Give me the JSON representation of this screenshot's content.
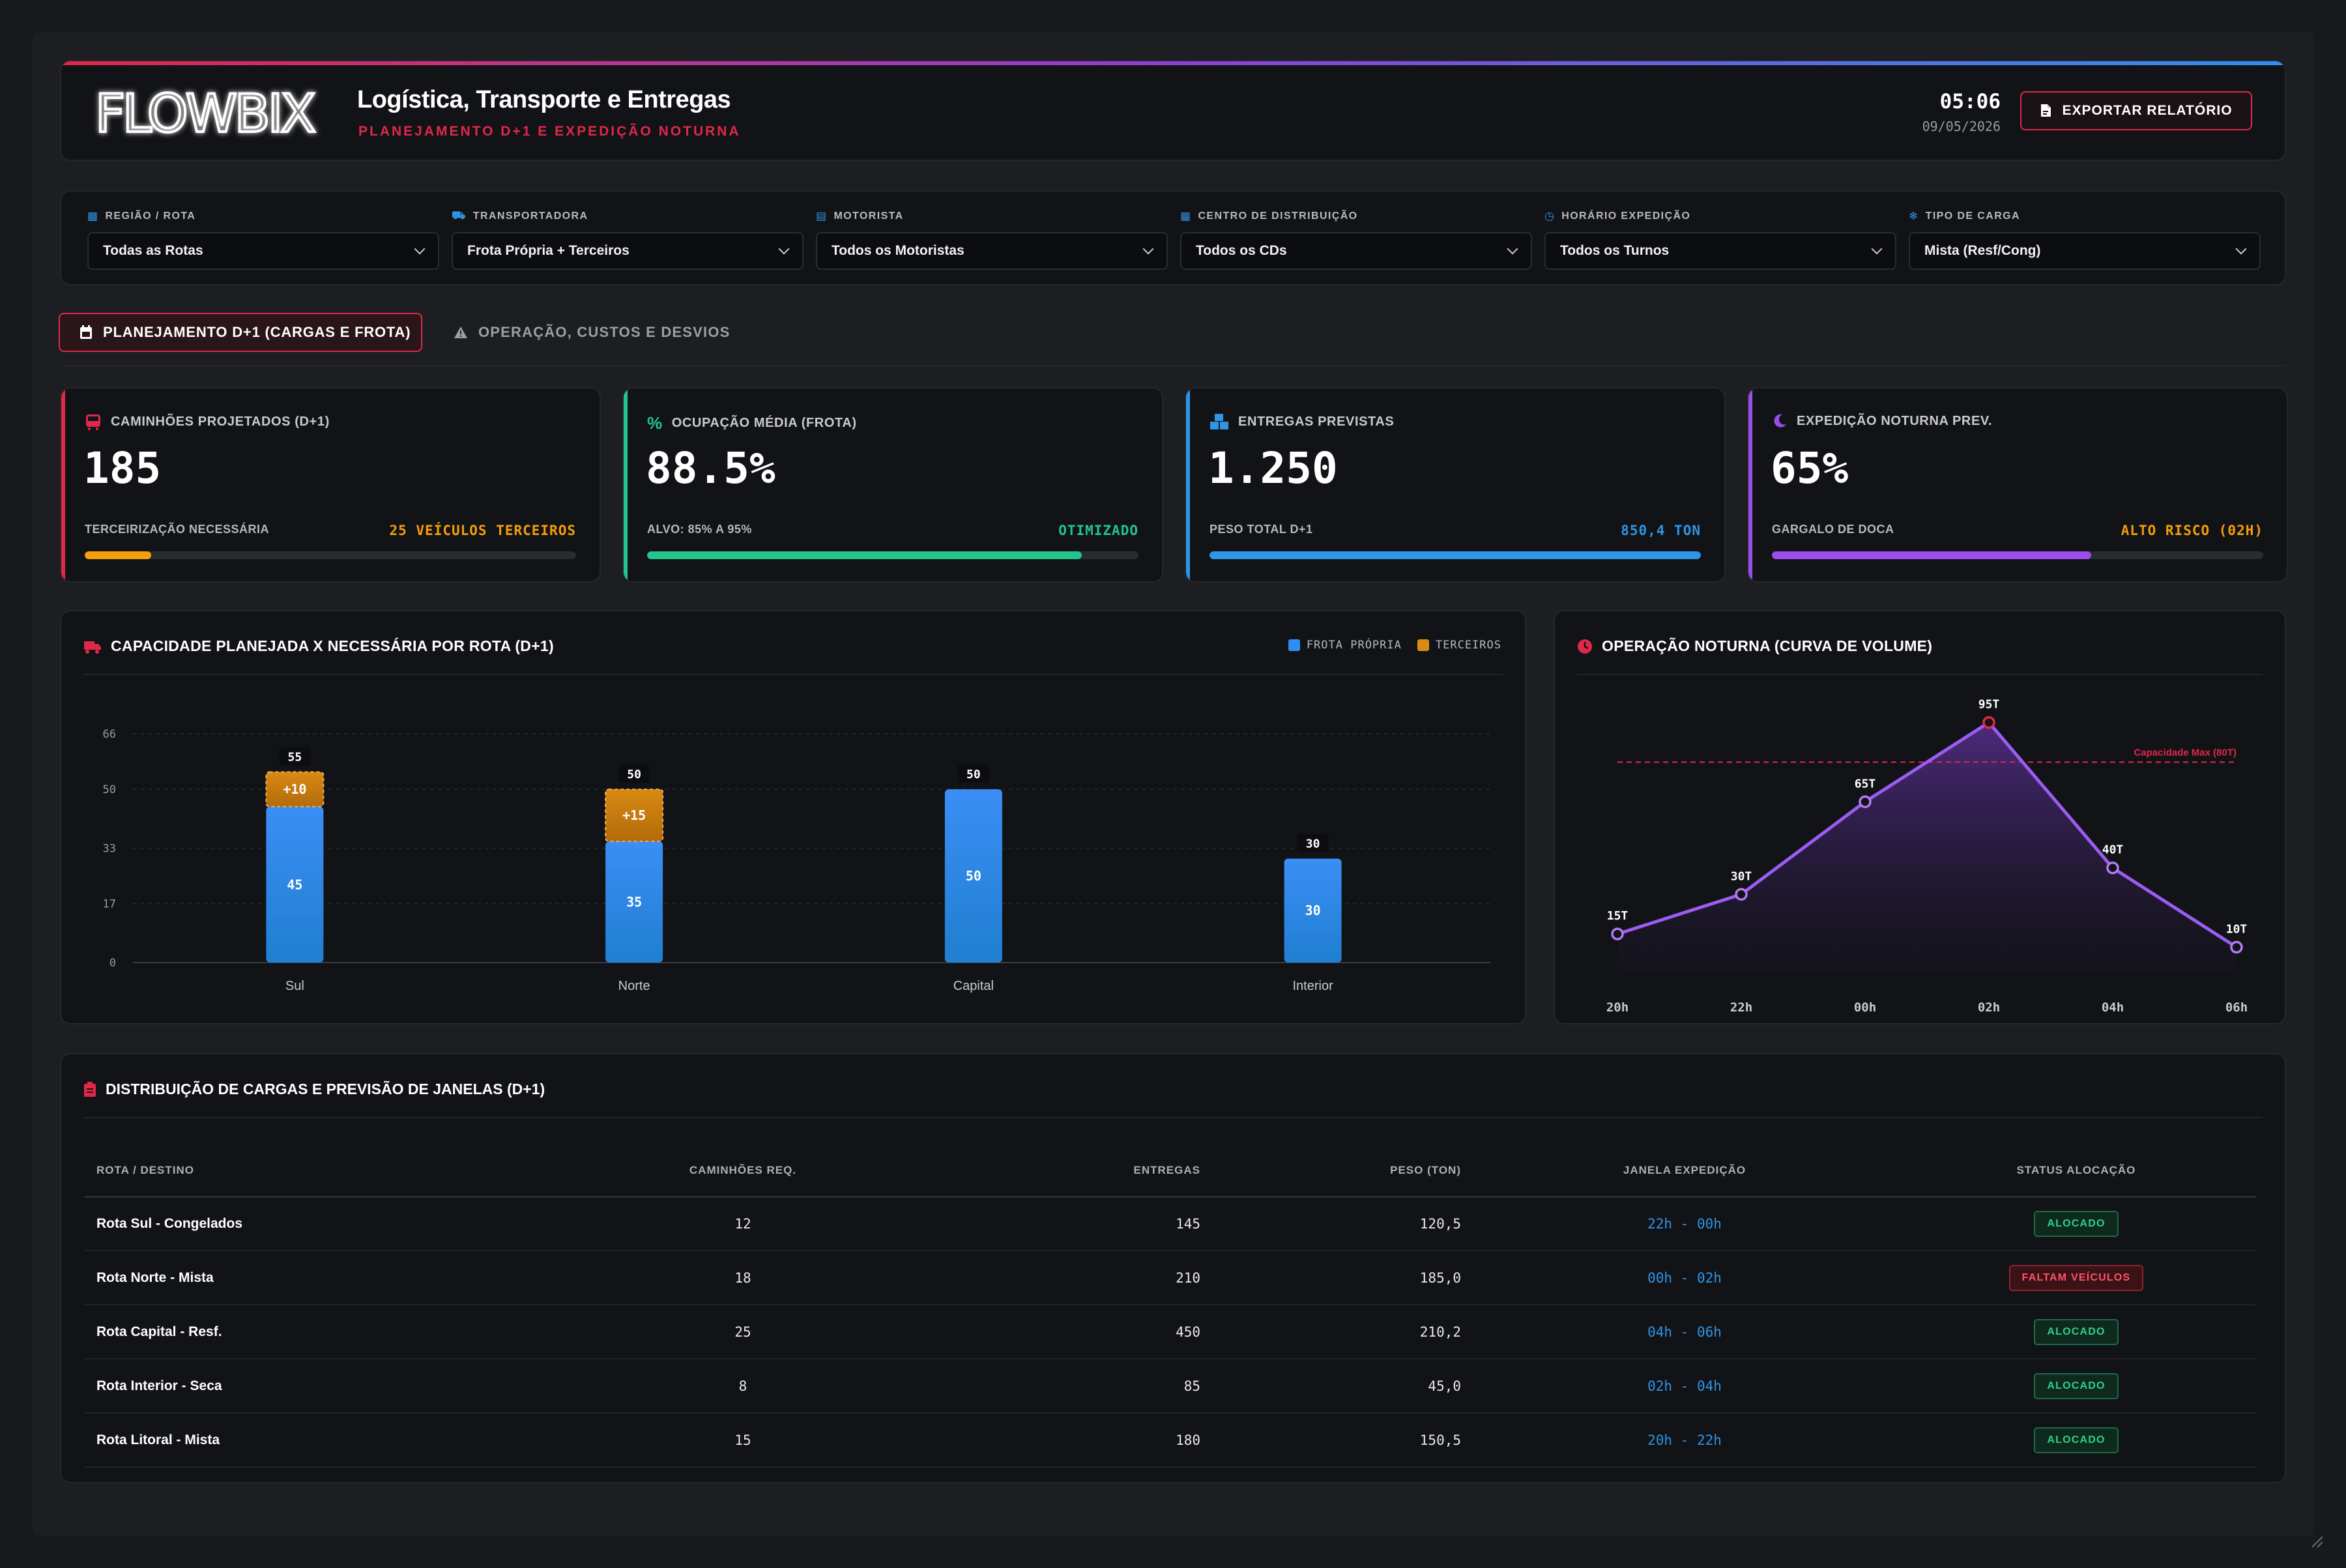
{
  "header": {
    "logo_text": "FLOWBIX",
    "title": "Logística, Transporte e Entregas",
    "subtitle": "PLANEJAMENTO D+1 E EXPEDIÇÃO NOTURNA",
    "time": "05:06",
    "date": "09/05/2026",
    "export_label": "EXPORTAR RELATÓRIO"
  },
  "filters": [
    {
      "label": "REGIÃO / ROTA",
      "value": "Todas as Rotas",
      "icon": "region-icon"
    },
    {
      "label": "TRANSPORTADORA",
      "value": "Frota Própria + Terceiros",
      "icon": "truck-icon"
    },
    {
      "label": "MOTORISTA",
      "value": "Todos os Motoristas",
      "icon": "id-card-icon"
    },
    {
      "label": "CENTRO DE DISTRIBUIÇÃO",
      "value": "Todos os CDs",
      "icon": "warehouse-icon"
    },
    {
      "label": "HORÁRIO EXPEDIÇÃO",
      "value": "Todos os Turnos",
      "icon": "clock-icon"
    },
    {
      "label": "TIPO DE CARGA",
      "value": "Mista (Resf/Cong)",
      "icon": "snowflake-icon"
    }
  ],
  "tabs": {
    "active": "PLANEJAMENTO D+1 (CARGAS E FROTA)",
    "inactive": "OPERAÇÃO, CUSTOS E DESVIOS"
  },
  "kpis": [
    {
      "title": "CAMINHÕES PROJETADOS (D+1)",
      "value": "185",
      "sub": "TERCEIRIZAÇÃO NECESSÁRIA",
      "badge": "25 VEÍCULOS TERCEIROS",
      "color": "#e0284a",
      "badge_color": "#f59e0b",
      "bar_color": "#f59e0b",
      "progress": 0.135
    },
    {
      "title": "OCUPAÇÃO MÉDIA (FROTA)",
      "value": "88.5%",
      "sub": "ALVO: 85% A 95%",
      "badge": "OTIMIZADO",
      "color": "#22c58b",
      "badge_color": "#22c58b",
      "bar_color": "#22c58b",
      "progress": 0.885
    },
    {
      "title": "ENTREGAS PREVISTAS",
      "value": "1.250",
      "sub": "PESO TOTAL D+1",
      "badge": "850,4 TON",
      "color": "#2f95e6",
      "badge_color": "#2f95e6",
      "bar_color": "#2f95e6",
      "progress": 1.0
    },
    {
      "title": "EXPEDIÇÃO NOTURNA PREV.",
      "value": "65%",
      "sub": "GARGALO DE DOCA",
      "badge": "ALTO RISCO (02H)",
      "color": "#9b4dea",
      "badge_color": "#f59e0b",
      "bar_color": "#9b4dea",
      "progress": 0.65
    }
  ],
  "capacity_chart": {
    "title": "CAPACIDADE PLANEJADA X NECESSÁRIA POR ROTA (D+1)",
    "legend": [
      "FROTA PRÓPRIA",
      "TERCEIROS"
    ]
  },
  "night_chart": {
    "title": "OPERAÇÃO NOTURNA (CURVA DE VOLUME)",
    "capacity_label": "Capacidade Max (80T)"
  },
  "chart_data": [
    {
      "type": "bar",
      "title": "CAPACIDADE PLANEJADA X NECESSÁRIA POR ROTA (D+1)",
      "categories": [
        "Sul",
        "Norte",
        "Capital",
        "Interior"
      ],
      "series": [
        {
          "name": "FROTA PRÓPRIA",
          "values": [
            45,
            35,
            50,
            30
          ],
          "labels": [
            "45",
            "35",
            "50",
            "30"
          ],
          "color": "#2f8ff0"
        },
        {
          "name": "TERCEIROS",
          "values": [
            10,
            15,
            0,
            0
          ],
          "labels": [
            "+10",
            "+15",
            "",
            ""
          ],
          "color": "#d98a14"
        }
      ],
      "totals": [
        "55",
        "50",
        "50",
        "30"
      ],
      "yticks": [
        "66",
        "50",
        "33",
        "17",
        "0"
      ],
      "ylim": [
        0,
        66
      ]
    },
    {
      "type": "area",
      "title": "OPERAÇÃO NOTURNA (CURVA DE VOLUME)",
      "x": [
        "20h",
        "22h",
        "00h",
        "02h",
        "04h",
        "06h"
      ],
      "values": [
        15,
        30,
        65,
        95,
        40,
        10
      ],
      "point_labels": [
        "15T",
        "30T",
        "65T",
        "95T",
        "40T",
        "10T"
      ],
      "threshold": 80,
      "threshold_label": "Capacidade Max (80T)",
      "ylim": [
        0,
        105
      ]
    }
  ],
  "table": {
    "title": "DISTRIBUIÇÃO DE CARGAS E PREVISÃO DE JANELAS (D+1)",
    "columns": [
      "ROTA / DESTINO",
      "CAMINHÕES REQ.",
      "ENTREGAS",
      "PESO (TON)",
      "JANELA EXPEDIÇÃO",
      "STATUS ALOCAÇÃO"
    ],
    "rows": [
      {
        "route": "Rota Sul - Congelados",
        "trucks": "12",
        "deliveries": "145",
        "weight": "120,5",
        "window": "22h - 00h",
        "status": "ALOCADO",
        "ok": true
      },
      {
        "route": "Rota Norte - Mista",
        "trucks": "18",
        "deliveries": "210",
        "weight": "185,0",
        "window": "00h - 02h",
        "status": "FALTAM VEÍCULOS",
        "ok": false
      },
      {
        "route": "Rota Capital - Resf.",
        "trucks": "25",
        "deliveries": "450",
        "weight": "210,2",
        "window": "04h - 06h",
        "status": "ALOCADO",
        "ok": true
      },
      {
        "route": "Rota Interior - Seca",
        "trucks": "8",
        "deliveries": "85",
        "weight": "45,0",
        "window": "02h - 04h",
        "status": "ALOCADO",
        "ok": true
      },
      {
        "route": "Rota Litoral - Mista",
        "trucks": "15",
        "deliveries": "180",
        "weight": "150,5",
        "window": "20h - 22h",
        "status": "ALOCADO",
        "ok": true
      }
    ]
  }
}
